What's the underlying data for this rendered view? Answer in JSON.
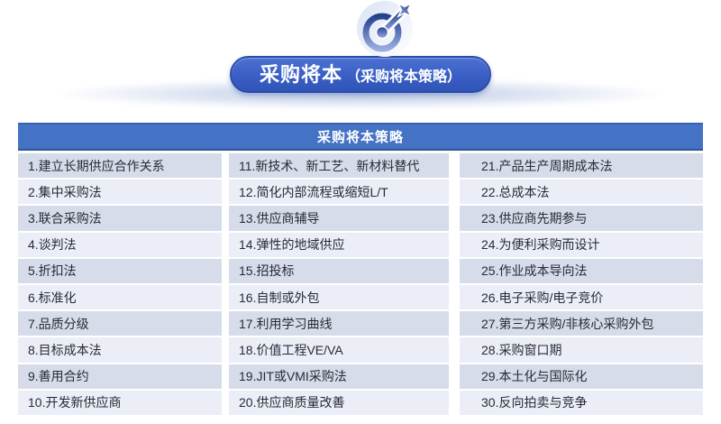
{
  "banner": {
    "title": "采购将本",
    "subtitle": "（采购将本策略）"
  },
  "icons": {
    "hero": "dart-target-icon"
  },
  "table": {
    "header": "采购将本策略",
    "columns": [
      {
        "items": [
          "1.建立长期供应合作关系",
          "2.集中采购法",
          "3.联合采购法",
          "4.谈判法",
          "5.折扣法",
          "6.标准化",
          "7.品质分级",
          "8.目标成本法",
          "9.善用合约",
          "10.开发新供应商"
        ]
      },
      {
        "items": [
          "11.新技术、新工艺、新材料替代",
          "12.简化内部流程或缩短L/T",
          "13.供应商辅导",
          "14.弹性的地域供应",
          "15.招投标",
          "16.自制或外包",
          "17.利用学习曲线",
          "18.价值工程VE/VA",
          "19.JIT或VMI采购法",
          "20.供应商质量改善"
        ]
      },
      {
        "items": [
          "21.产品生产周期成本法",
          "22.总成本法",
          "23.供应商先期参与",
          "24.为便利采购而设计",
          "25.作业成本导向法",
          "26.电子采购/电子竞价",
          "27.第三方采购/非核心采购外包",
          "28.采购窗口期",
          "29.本土化与国际化",
          "30.反向拍卖与竞争"
        ]
      }
    ]
  },
  "colors": {
    "header_blue": "#4472C4",
    "header_border": "#2F5597",
    "row_odd": "#D6DCE9",
    "row_even": "#EBEEF6",
    "banner_top": "#4C71D2",
    "banner_bottom": "#3055B8",
    "banner_border": "#2B4DA8",
    "icon_dark": "#24418E",
    "icon_light": "#98ACDF",
    "text_dark": "#262B36",
    "text_white": "#FFFFFF"
  }
}
